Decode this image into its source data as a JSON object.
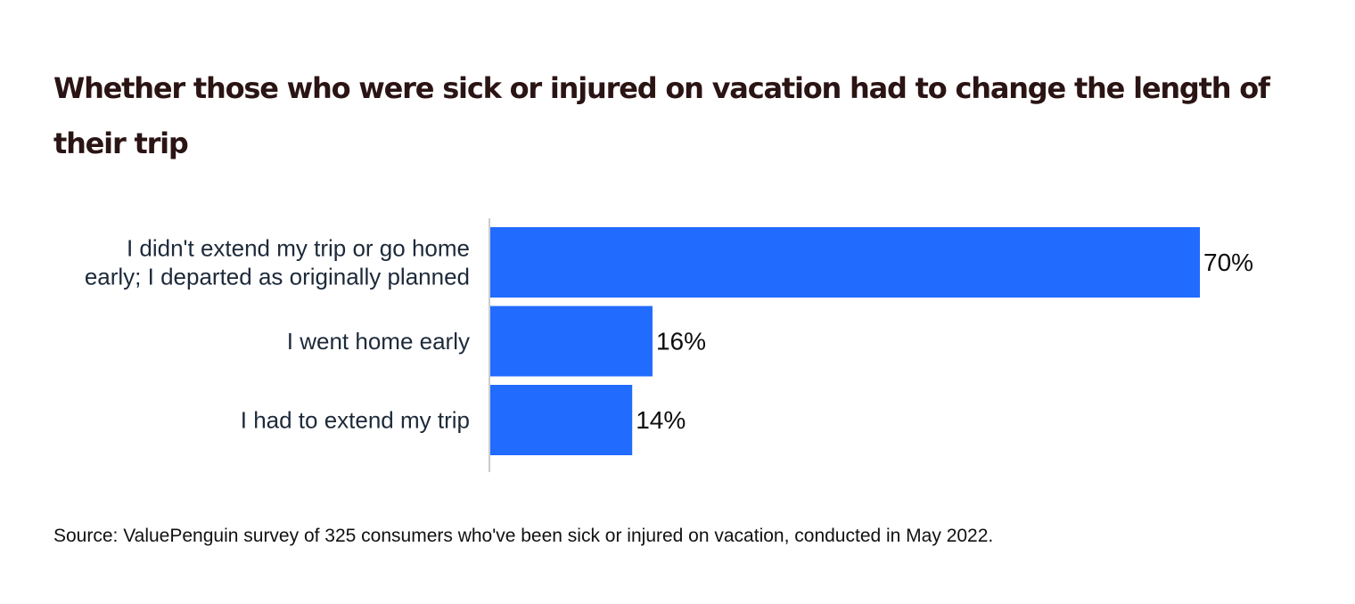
{
  "chart_data": {
    "type": "bar",
    "orientation": "horizontal",
    "title": "Whether those who were sick or injured on vacation had to change the length of their trip",
    "categories": [
      [
        "I didn't extend my trip or go home",
        "early; I departed as originally planned"
      ],
      [
        "I went home early"
      ],
      [
        "I had to extend my trip"
      ]
    ],
    "values": [
      70,
      16,
      14
    ],
    "value_labels": [
      "70%",
      "16%",
      "14%"
    ],
    "xlim": [
      0,
      70
    ],
    "grid": false,
    "legend": "none",
    "bar_color": "#216bff",
    "axis_color": "#cccccc",
    "source": "Source: ValuePenguin survey of 325 consumers who've been sick or injured on vacation, conducted in May 2022."
  }
}
